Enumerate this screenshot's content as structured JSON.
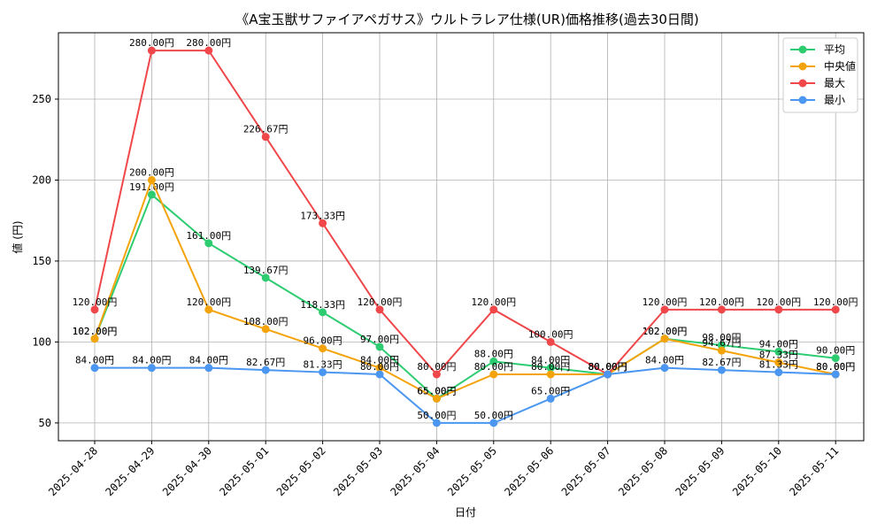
{
  "chart_data": {
    "type": "line",
    "title": "《A宝玉獣サファイアペガサス》ウルトラレア仕様(UR)価格推移(過去30日間)",
    "xlabel": "日付",
    "ylabel": "値 (円)",
    "categories": [
      "2025-04-28",
      "2025-04-29",
      "2025-04-30",
      "2025-05-01",
      "2025-05-02",
      "2025-05-03",
      "2025-05-04",
      "2025-05-05",
      "2025-05-06",
      "2025-05-07",
      "2025-05-08",
      "2025-05-09",
      "2025-05-10",
      "2025-05-11"
    ],
    "ylim": [
      39,
      291
    ],
    "yticks": [
      50,
      100,
      150,
      200,
      250
    ],
    "grid": true,
    "legend_position": "top-right",
    "label_suffix": "円",
    "series": [
      {
        "name": "平均",
        "color": "#2ecc71",
        "values": [
          102.0,
          191.0,
          161.0,
          139.67,
          118.33,
          97.0,
          65.0,
          88.0,
          84.0,
          80.0,
          102.0,
          98.0,
          94.0,
          90.0
        ]
      },
      {
        "name": "中央値",
        "color": "#f5a30a",
        "values": [
          102.0,
          200.0,
          120.0,
          108.0,
          96.0,
          84.0,
          65.0,
          80.0,
          80.0,
          80.0,
          102.0,
          94.67,
          87.33,
          80.0
        ]
      },
      {
        "name": "最大",
        "color": "#f0474a",
        "values": [
          120.0,
          280.0,
          280.0,
          226.67,
          173.33,
          120.0,
          80.0,
          120.0,
          100.0,
          80.0,
          120.0,
          120.0,
          120.0,
          120.0
        ]
      },
      {
        "name": "最小",
        "color": "#4a96f0",
        "values": [
          84.0,
          84.0,
          84.0,
          82.67,
          81.33,
          80.0,
          50.0,
          50.0,
          65.0,
          80.0,
          84.0,
          82.67,
          81.33,
          80.0
        ]
      }
    ]
  }
}
